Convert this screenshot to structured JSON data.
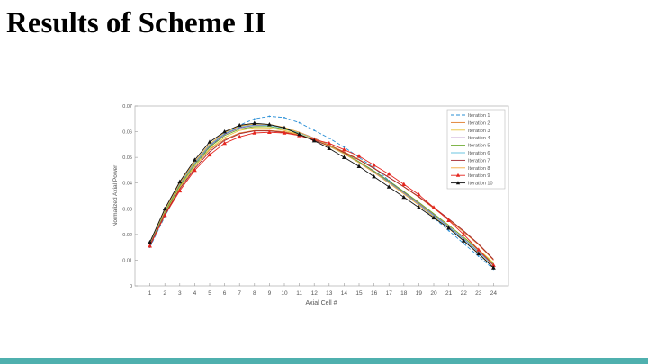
{
  "slide": {
    "title": "Results of Scheme II",
    "bottom_bar_color": "#4fb0ae"
  },
  "chart_data": {
    "type": "line",
    "title": "",
    "xlabel": "Axial Cell #",
    "ylabel": "Normalized Axial Power",
    "xlim": [
      0,
      25
    ],
    "ylim": [
      0,
      0.07
    ],
    "x_ticks": [
      1,
      2,
      3,
      4,
      5,
      6,
      7,
      8,
      9,
      10,
      11,
      12,
      13,
      14,
      15,
      16,
      17,
      18,
      19,
      20,
      21,
      22,
      23,
      24
    ],
    "y_ticks": [
      0,
      0.01,
      0.02,
      0.03,
      0.04,
      0.05,
      0.06,
      0.07
    ],
    "y_tick_labels": [
      "0",
      "0.01",
      "0.02",
      "0.03",
      "0.04",
      "0.05",
      "0.06",
      "0.07"
    ],
    "grid": false,
    "legend_position": "top-right",
    "x": [
      1,
      2,
      3,
      4,
      5,
      6,
      7,
      8,
      9,
      10,
      11,
      12,
      13,
      14,
      15,
      16,
      17,
      18,
      19,
      20,
      21,
      22,
      23,
      24
    ],
    "series": [
      {
        "name": "Iteration 1",
        "color": "#2a8fd6",
        "dash": "4,2",
        "marker": "dot",
        "values": [
          0.015,
          0.027,
          0.038,
          0.0465,
          0.054,
          0.059,
          0.0625,
          0.065,
          0.066,
          0.0655,
          0.0635,
          0.0605,
          0.0575,
          0.054,
          0.05,
          0.046,
          0.041,
          0.0365,
          0.0315,
          0.0265,
          0.0215,
          0.0165,
          0.0115,
          0.0065
        ]
      },
      {
        "name": "Iteration 2",
        "color": "#e07b2a",
        "dash": "",
        "marker": "none",
        "values": [
          0.0162,
          0.0285,
          0.0385,
          0.0465,
          0.053,
          0.057,
          0.0595,
          0.0605,
          0.0605,
          0.06,
          0.0588,
          0.057,
          0.0548,
          0.0522,
          0.0492,
          0.0458,
          0.0422,
          0.0385,
          0.0345,
          0.0302,
          0.0258,
          0.021,
          0.016,
          0.01
        ]
      },
      {
        "name": "Iteration 3",
        "color": "#e8c33a",
        "dash": "",
        "marker": "none",
        "values": [
          0.016,
          0.0282,
          0.0383,
          0.0465,
          0.0533,
          0.0578,
          0.0605,
          0.0616,
          0.0615,
          0.0605,
          0.059,
          0.0568,
          0.0543,
          0.0514,
          0.048,
          0.0443,
          0.0405,
          0.0365,
          0.0323,
          0.028,
          0.0235,
          0.019,
          0.0142,
          0.009
        ]
      },
      {
        "name": "Iteration 4",
        "color": "#8e4ea8",
        "dash": "",
        "marker": "none",
        "values": [
          0.0165,
          0.029,
          0.0395,
          0.0478,
          0.0545,
          0.059,
          0.0615,
          0.0625,
          0.0625,
          0.0615,
          0.0598,
          0.0575,
          0.0548,
          0.0517,
          0.0482,
          0.0445,
          0.0405,
          0.0363,
          0.032,
          0.0276,
          0.023,
          0.0183,
          0.0133,
          0.008
        ]
      },
      {
        "name": "Iteration 5",
        "color": "#6aaa2c",
        "dash": "",
        "marker": "none",
        "values": [
          0.0163,
          0.0287,
          0.039,
          0.0472,
          0.054,
          0.0585,
          0.061,
          0.062,
          0.062,
          0.061,
          0.0595,
          0.0573,
          0.0547,
          0.0517,
          0.0483,
          0.0447,
          0.0408,
          0.0367,
          0.0325,
          0.0281,
          0.0236,
          0.0189,
          0.0139,
          0.0085
        ]
      },
      {
        "name": "Iteration 6",
        "color": "#5bc0de",
        "dash": "",
        "marker": "none",
        "values": [
          0.0166,
          0.0292,
          0.0397,
          0.048,
          0.0548,
          0.0593,
          0.0618,
          0.0627,
          0.0625,
          0.0614,
          0.0596,
          0.0573,
          0.0545,
          0.0514,
          0.0479,
          0.0442,
          0.0402,
          0.036,
          0.0317,
          0.0273,
          0.0228,
          0.0181,
          0.0131,
          0.0078
        ]
      },
      {
        "name": "Iteration 7",
        "color": "#a3262e",
        "dash": "",
        "marker": "none",
        "values": [
          0.0158,
          0.0278,
          0.0377,
          0.0457,
          0.0522,
          0.0566,
          0.0592,
          0.0603,
          0.0603,
          0.0597,
          0.0585,
          0.0567,
          0.0545,
          0.0519,
          0.049,
          0.0457,
          0.0422,
          0.0386,
          0.0347,
          0.0305,
          0.0261,
          0.0214,
          0.0163,
          0.0103
        ]
      },
      {
        "name": "Iteration 8",
        "color": "#f5a83a",
        "dash": "",
        "marker": "none",
        "values": [
          0.0168,
          0.0294,
          0.04,
          0.0484,
          0.0552,
          0.0597,
          0.0622,
          0.063,
          0.0628,
          0.0617,
          0.0598,
          0.0574,
          0.0546,
          0.0514,
          0.0479,
          0.0441,
          0.04,
          0.0358,
          0.0314,
          0.0269,
          0.0223,
          0.0176,
          0.0126,
          0.0072
        ]
      },
      {
        "name": "Iteration 9",
        "color": "#e5261f",
        "dash": "",
        "marker": "triangle",
        "values": [
          0.0155,
          0.0275,
          0.037,
          0.045,
          0.051,
          0.0555,
          0.058,
          0.0595,
          0.0598,
          0.0595,
          0.0585,
          0.057,
          0.0555,
          0.053,
          0.0505,
          0.047,
          0.0435,
          0.0395,
          0.0355,
          0.0305,
          0.0255,
          0.02,
          0.014,
          0.008
        ]
      },
      {
        "name": "Iteration 10",
        "color": "#111111",
        "dash": "",
        "marker": "triangle",
        "values": [
          0.017,
          0.03,
          0.0405,
          0.049,
          0.056,
          0.06,
          0.0625,
          0.0633,
          0.0628,
          0.0615,
          0.059,
          0.0565,
          0.0535,
          0.05,
          0.0465,
          0.0425,
          0.0385,
          0.0345,
          0.0305,
          0.0265,
          0.0225,
          0.0175,
          0.0125,
          0.007
        ]
      }
    ]
  }
}
